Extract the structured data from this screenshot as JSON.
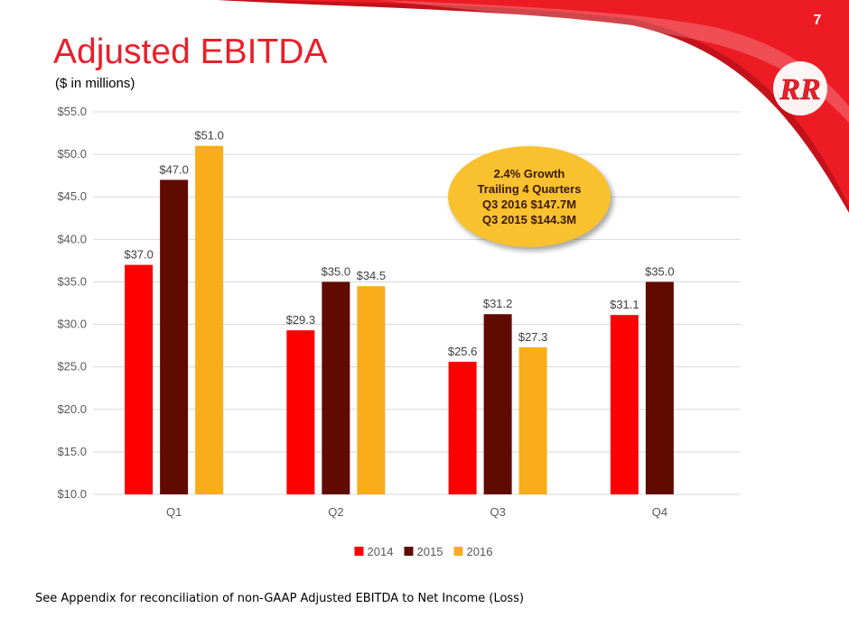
{
  "page": {
    "number": "7",
    "title": "Adjusted EBITDA",
    "subtitle": "($ in millions)",
    "footnote": "See Appendix for reconciliation of non-GAAP Adjusted EBITDA to Net Income (Loss)",
    "logo_text": "RR"
  },
  "callout": {
    "lines": [
      "2.4% Growth",
      "Trailing 4 Quarters",
      "Q3 2016 $147.7M",
      "Q3 2015 $144.3M"
    ]
  },
  "colors": {
    "brand_red": "#e8202a",
    "callout_fill": "#f9c12e"
  },
  "chart_data": {
    "type": "bar",
    "title": "",
    "xlabel": "",
    "ylabel": "",
    "categories": [
      "Q1",
      "Q2",
      "Q3",
      "Q4"
    ],
    "ylim": [
      10,
      55
    ],
    "yticks": [
      10,
      15,
      20,
      25,
      30,
      35,
      40,
      45,
      50,
      55
    ],
    "ytick_labels": [
      "$10.0",
      "$15.0",
      "$20.0",
      "$25.0",
      "$30.0",
      "$35.0",
      "$40.0",
      "$45.0",
      "$50.0",
      "$55.0"
    ],
    "grid": true,
    "legend_position": "bottom",
    "series": [
      {
        "name": "2014",
        "color": "#ff0000",
        "values": [
          37.0,
          29.3,
          25.6,
          31.1
        ],
        "labels": [
          "$37.0",
          "$29.3",
          "$25.6",
          "$31.1"
        ]
      },
      {
        "name": "2015",
        "color": "#600a00",
        "values": [
          47.0,
          35.0,
          31.2,
          35.0
        ],
        "labels": [
          "$47.0",
          "$35.0",
          "$31.2",
          "$35.0"
        ]
      },
      {
        "name": "2016",
        "color": "#f9ad1a",
        "values": [
          51.0,
          34.5,
          27.3,
          null
        ],
        "labels": [
          "$51.0",
          "$34.5",
          "$27.3",
          null
        ]
      }
    ]
  }
}
